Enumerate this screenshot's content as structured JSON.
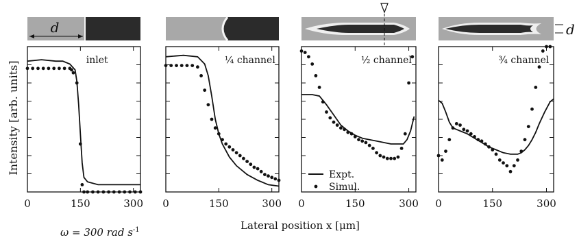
{
  "figure": {
    "ylabel": "Intensity [arb. units]",
    "xlabel": "Lateral position x [μm]",
    "omega_label": "ω = 300 rad s",
    "omega_sup": "-1",
    "d_label": "d",
    "d_label_right": "d",
    "legend": {
      "expt": "Expt.",
      "simul": "Simul."
    },
    "colors": {
      "line": "#111111",
      "strip_light": "#aaaaaa",
      "strip_dark": "#2a2a2a",
      "strip_white": "#f2f2f2"
    }
  },
  "chart_data": [
    {
      "type": "line",
      "panel_label": "inlet",
      "xlim": [
        0,
        320
      ],
      "ylim": [
        0,
        1
      ],
      "xticks": [
        0,
        150,
        300
      ],
      "xticklabels": [
        "0",
        "150",
        "300"
      ],
      "series": [
        {
          "name": "Expt.",
          "style": "line",
          "x": [
            0,
            40,
            80,
            100,
            120,
            135,
            140,
            145,
            150,
            155,
            160,
            170,
            200,
            250,
            300,
            320
          ],
          "y": [
            0.9,
            0.91,
            0.9,
            0.9,
            0.88,
            0.84,
            0.76,
            0.6,
            0.4,
            0.2,
            0.1,
            0.07,
            0.05,
            0.05,
            0.05,
            0.05
          ]
        },
        {
          "name": "Simul.",
          "style": "dots",
          "x": [
            0,
            15,
            30,
            45,
            60,
            75,
            90,
            105,
            120,
            125,
            130,
            140,
            150,
            155,
            160,
            170,
            185,
            200,
            215,
            230,
            245,
            260,
            275,
            290,
            305,
            320
          ],
          "y": [
            0.85,
            0.85,
            0.85,
            0.85,
            0.85,
            0.85,
            0.85,
            0.85,
            0.85,
            0.84,
            0.82,
            0.75,
            0.33,
            0.05,
            0.0,
            0.0,
            0.0,
            0.0,
            0.0,
            0.0,
            0.0,
            0.0,
            0.0,
            0.0,
            0.0,
            0.0
          ]
        }
      ]
    },
    {
      "type": "line",
      "panel_label": "¼ channel",
      "xlim": [
        0,
        320
      ],
      "ylim": [
        0,
        1
      ],
      "xticks": [
        0,
        150,
        300
      ],
      "xticklabels": [
        "0",
        "150",
        "300"
      ],
      "series": [
        {
          "name": "Expt.",
          "style": "line",
          "x": [
            0,
            50,
            90,
            110,
            120,
            130,
            140,
            150,
            160,
            180,
            200,
            230,
            260,
            290,
            320
          ],
          "y": [
            0.93,
            0.94,
            0.93,
            0.88,
            0.8,
            0.66,
            0.5,
            0.4,
            0.33,
            0.24,
            0.18,
            0.12,
            0.08,
            0.05,
            0.04
          ]
        },
        {
          "name": "Simul.",
          "style": "dots",
          "x": [
            0,
            15,
            30,
            45,
            60,
            75,
            90,
            100,
            110,
            120,
            130,
            140,
            150,
            160,
            170,
            180,
            190,
            200,
            210,
            220,
            230,
            240,
            250,
            260,
            270,
            280,
            290,
            300,
            310,
            320
          ],
          "y": [
            0.87,
            0.87,
            0.87,
            0.87,
            0.87,
            0.87,
            0.86,
            0.8,
            0.7,
            0.6,
            0.5,
            0.44,
            0.4,
            0.36,
            0.33,
            0.31,
            0.29,
            0.27,
            0.25,
            0.23,
            0.21,
            0.19,
            0.17,
            0.16,
            0.14,
            0.12,
            0.11,
            0.1,
            0.09,
            0.08
          ]
        }
      ]
    },
    {
      "type": "line",
      "panel_label": "½ channel",
      "xlim": [
        0,
        320
      ],
      "ylim": [
        0,
        1
      ],
      "xticks": [
        0,
        150,
        300
      ],
      "xticklabels": [
        "0",
        "150",
        "300"
      ],
      "series": [
        {
          "name": "Expt.",
          "style": "line",
          "x": [
            0,
            30,
            50,
            70,
            90,
            110,
            130,
            150,
            170,
            190,
            210,
            230,
            250,
            270,
            285,
            295,
            305,
            315
          ],
          "y": [
            0.67,
            0.67,
            0.66,
            0.6,
            0.53,
            0.46,
            0.42,
            0.39,
            0.37,
            0.36,
            0.35,
            0.34,
            0.33,
            0.33,
            0.33,
            0.36,
            0.42,
            0.52
          ]
        },
        {
          "name": "Simul.",
          "style": "dots",
          "x": [
            0,
            10,
            20,
            30,
            40,
            50,
            60,
            70,
            80,
            90,
            100,
            110,
            120,
            130,
            140,
            150,
            160,
            170,
            180,
            190,
            200,
            210,
            220,
            230,
            240,
            250,
            260,
            270,
            280,
            290,
            300,
            310
          ],
          "y": [
            0.97,
            0.96,
            0.93,
            0.88,
            0.8,
            0.72,
            0.62,
            0.55,
            0.51,
            0.48,
            0.46,
            0.44,
            0.43,
            0.41,
            0.4,
            0.38,
            0.36,
            0.35,
            0.34,
            0.32,
            0.3,
            0.27,
            0.25,
            0.24,
            0.23,
            0.23,
            0.23,
            0.24,
            0.3,
            0.4,
            0.75,
            0.93
          ]
        }
      ]
    },
    {
      "type": "line",
      "panel_label": "¾ channel",
      "xlim": [
        0,
        320
      ],
      "ylim": [
        0,
        1
      ],
      "xticks": [
        0,
        150,
        300
      ],
      "xticklabels": [
        "0",
        "150",
        "300"
      ],
      "series": [
        {
          "name": "Expt.",
          "style": "line",
          "x": [
            0,
            10,
            20,
            30,
            40,
            50,
            60,
            80,
            100,
            120,
            140,
            160,
            180,
            200,
            220,
            230,
            240,
            250,
            260,
            270,
            280,
            295,
            310,
            320
          ],
          "y": [
            0.63,
            0.61,
            0.55,
            0.48,
            0.44,
            0.43,
            0.42,
            0.4,
            0.37,
            0.34,
            0.31,
            0.29,
            0.27,
            0.26,
            0.26,
            0.27,
            0.29,
            0.32,
            0.36,
            0.41,
            0.47,
            0.55,
            0.62,
            0.64
          ]
        },
        {
          "name": "Simul.",
          "style": "dots",
          "x": [
            0,
            10,
            20,
            30,
            40,
            50,
            60,
            70,
            80,
            90,
            100,
            110,
            120,
            130,
            140,
            150,
            160,
            170,
            180,
            190,
            200,
            210,
            220,
            230,
            240,
            250,
            260,
            270,
            280,
            290,
            300,
            310
          ],
          "y": [
            0.25,
            0.22,
            0.28,
            0.36,
            0.44,
            0.47,
            0.46,
            0.43,
            0.42,
            0.4,
            0.38,
            0.36,
            0.35,
            0.33,
            0.31,
            0.29,
            0.26,
            0.22,
            0.2,
            0.18,
            0.14,
            0.18,
            0.22,
            0.28,
            0.36,
            0.45,
            0.57,
            0.72,
            0.86,
            0.97,
            1.0,
            1.0
          ]
        }
      ]
    }
  ]
}
